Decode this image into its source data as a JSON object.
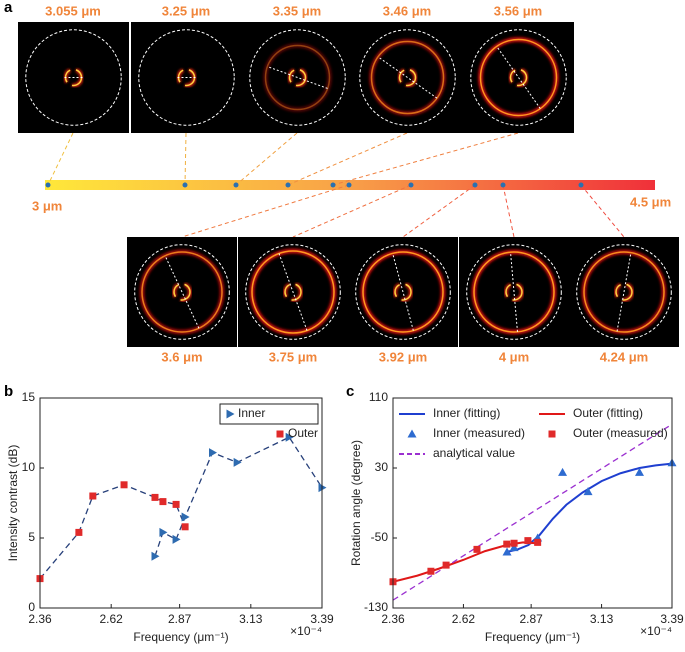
{
  "figure": {
    "panel_labels": [
      "a",
      "b",
      "c"
    ],
    "top_wavelengths": [
      "3.055 μm",
      "3.25 μm",
      "3.35 μm",
      "3.46 μm",
      "3.56 μm"
    ],
    "bottom_wavelengths": [
      "3.6 μm",
      "3.75 μm",
      "3.92 μm",
      "4 μm",
      "4.24 μm"
    ],
    "bar_start": "3 μm",
    "bar_end": "4.5 μm"
  },
  "chart_data": [
    {
      "type": "line",
      "ylabel": "Intensity contrast (dB)",
      "xlabel": "Frequency (μm⁻¹)",
      "x_multiplier": "×10⁻⁴",
      "xlim": [
        2.36,
        3.39
      ],
      "xticks": [
        2.36,
        2.62,
        2.87,
        3.13,
        3.39
      ],
      "ylim": [
        0,
        15
      ],
      "yticks": [
        0,
        5,
        10,
        15
      ],
      "legend": "upper right",
      "legend_columns": 1,
      "series": [
        {
          "name": "Inner",
          "color": "#2e6bb0",
          "line_color": "#27407a",
          "line_style": "dashed",
          "marker": "triangle-right",
          "x": [
            2.78,
            2.809,
            2.857,
            2.89,
            2.99,
            3.08,
            3.27,
            3.39
          ],
          "values": [
            3.7,
            5.4,
            4.9,
            6.5,
            11.1,
            10.4,
            12.2,
            8.6
          ]
        },
        {
          "name": "Outer",
          "color": "#e02a2a",
          "line_color": "#27407a",
          "line_style": "dashed",
          "marker": "square",
          "x": [
            2.36,
            2.502,
            2.553,
            2.667,
            2.78,
            2.809,
            2.857,
            2.89
          ],
          "values": [
            2.1,
            5.4,
            8.0,
            8.8,
            7.9,
            7.6,
            7.4,
            5.8
          ]
        }
      ]
    },
    {
      "type": "line",
      "ylabel": "Rotation angle (degree)",
      "xlabel": "Frequency (μm⁻¹)",
      "x_multiplier": "×10⁻⁴",
      "xlim": [
        2.36,
        3.39
      ],
      "xticks": [
        2.36,
        2.62,
        2.87,
        3.13,
        3.39
      ],
      "ylim": [
        -130,
        110
      ],
      "yticks": [
        -130,
        -50,
        30,
        110
      ],
      "legend": "upper left",
      "legend_columns": 2,
      "series": [
        {
          "name": "Inner (fitting)",
          "color": "#1f3fd0",
          "line_color": "#1f3fd0",
          "line_style": "solid",
          "x": [
            2.78,
            2.82,
            2.86,
            2.9,
            2.95,
            3.0,
            3.06,
            3.13,
            3.2,
            3.27,
            3.33,
            3.39
          ],
          "values": [
            -66,
            -63,
            -58,
            -47,
            -28,
            -12,
            2,
            15,
            24,
            30,
            33,
            35
          ]
        },
        {
          "name": "Outer (fitting)",
          "color": "#e01818",
          "line_color": "#e01818",
          "line_style": "solid",
          "x": [
            2.36,
            2.45,
            2.53,
            2.62,
            2.7,
            2.78,
            2.84,
            2.89
          ],
          "values": [
            -100,
            -93,
            -85,
            -75,
            -65,
            -58,
            -55,
            -56
          ]
        },
        {
          "name": "Inner (measured)",
          "color": "#2e6bd0",
          "marker": "triangle-up",
          "x": [
            2.781,
            2.807,
            2.894,
            2.986,
            3.08,
            3.27,
            3.39
          ],
          "values": [
            -66,
            -61,
            -50,
            25,
            3,
            25,
            36
          ]
        },
        {
          "name": "Outer (measured)",
          "color": "#e02a2a",
          "marker": "square",
          "x": [
            2.36,
            2.5,
            2.556,
            2.67,
            2.78,
            2.807,
            2.858,
            2.894
          ],
          "values": [
            -100,
            -88,
            -81,
            -63,
            -57,
            -56,
            -53,
            -55
          ]
        },
        {
          "name": "analytical value",
          "color": "#9b30d0",
          "line_color": "#9b30d0",
          "line_style": "dashed",
          "x": [
            2.36,
            3.39
          ],
          "values": [
            -121,
            80
          ]
        }
      ]
    }
  ]
}
